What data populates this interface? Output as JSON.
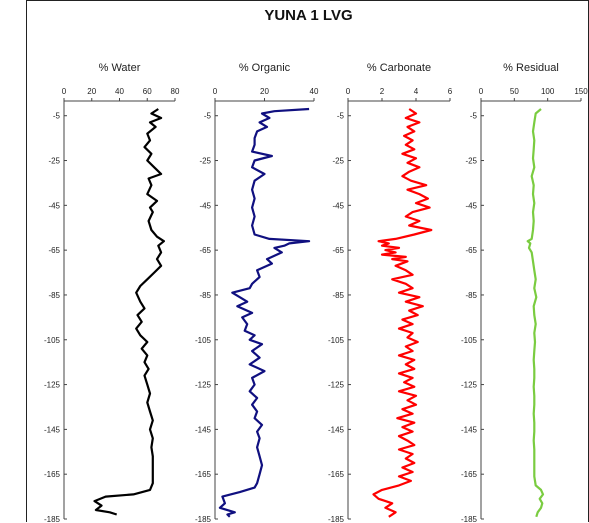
{
  "chart_data": {
    "type": "line",
    "title": "YUNA 1 LVG",
    "y_ticks": [
      "-5",
      "-25",
      "-45",
      "-65",
      "-85",
      "-105",
      "-125",
      "-145",
      "-165",
      "-185"
    ],
    "y_values": [
      -5,
      -25,
      -45,
      -65,
      -85,
      -105,
      -125,
      -145,
      -165,
      -185
    ],
    "ylim": [
      -185,
      -2
    ],
    "panels": [
      {
        "title": "% Water",
        "xlim": [
          0,
          80
        ],
        "x_ticks": [
          "0",
          "20",
          "40",
          "60",
          "80"
        ],
        "x_tick_values": [
          0,
          20,
          40,
          60,
          80
        ],
        "color": "#000000",
        "points": [
          [
            68,
            -2
          ],
          [
            63,
            -4
          ],
          [
            70,
            -6
          ],
          [
            62,
            -8
          ],
          [
            66,
            -10
          ],
          [
            60,
            -13
          ],
          [
            62,
            -16
          ],
          [
            58,
            -19
          ],
          [
            63,
            -22
          ],
          [
            60,
            -25
          ],
          [
            65,
            -28
          ],
          [
            70,
            -31
          ],
          [
            61,
            -33
          ],
          [
            63,
            -36
          ],
          [
            60,
            -40
          ],
          [
            67,
            -43
          ],
          [
            62,
            -46
          ],
          [
            64,
            -48
          ],
          [
            61,
            -52
          ],
          [
            63,
            -56
          ],
          [
            67,
            -59
          ],
          [
            72,
            -61
          ],
          [
            68,
            -63
          ],
          [
            70,
            -66
          ],
          [
            67,
            -69
          ],
          [
            70,
            -72
          ],
          [
            65,
            -75
          ],
          [
            60,
            -78
          ],
          [
            55,
            -81
          ],
          [
            52,
            -84
          ],
          [
            55,
            -88
          ],
          [
            58,
            -91
          ],
          [
            53,
            -94
          ],
          [
            56,
            -97
          ],
          [
            52,
            -100
          ],
          [
            55,
            -103
          ],
          [
            60,
            -106
          ],
          [
            56,
            -109
          ],
          [
            60,
            -112
          ],
          [
            58,
            -115
          ],
          [
            61,
            -118
          ],
          [
            58,
            -121
          ],
          [
            60,
            -125
          ],
          [
            62,
            -129
          ],
          [
            60,
            -133
          ],
          [
            62,
            -137
          ],
          [
            64,
            -141
          ],
          [
            62,
            -145
          ],
          [
            64,
            -149
          ],
          [
            63,
            -153
          ],
          [
            64,
            -157
          ],
          [
            64,
            -161
          ],
          [
            64,
            -165
          ],
          [
            64,
            -169
          ],
          [
            62,
            -172
          ],
          [
            50,
            -174
          ],
          [
            30,
            -175
          ],
          [
            22,
            -177
          ],
          [
            27,
            -179
          ],
          [
            23,
            -181
          ],
          [
            33,
            -182
          ],
          [
            38,
            -183
          ]
        ]
      },
      {
        "title": "% Organic",
        "xlim": [
          0,
          40
        ],
        "x_ticks": [
          "0",
          "20",
          "40"
        ],
        "x_tick_values": [
          0,
          20,
          40
        ],
        "color": "#101080",
        "points": [
          [
            38,
            -2
          ],
          [
            24,
            -3
          ],
          [
            19,
            -4
          ],
          [
            22,
            -6
          ],
          [
            18,
            -8
          ],
          [
            21,
            -10
          ],
          [
            17,
            -12
          ],
          [
            16,
            -15
          ],
          [
            16,
            -18
          ],
          [
            15,
            -21
          ],
          [
            23,
            -23
          ],
          [
            16,
            -25
          ],
          [
            15,
            -28
          ],
          [
            20,
            -31
          ],
          [
            16,
            -34
          ],
          [
            15,
            -38
          ],
          [
            16,
            -42
          ],
          [
            15,
            -46
          ],
          [
            16,
            -50
          ],
          [
            15,
            -54
          ],
          [
            16,
            -58
          ],
          [
            22,
            -60
          ],
          [
            38,
            -61
          ],
          [
            30,
            -62
          ],
          [
            28,
            -63
          ],
          [
            24,
            -64
          ],
          [
            27,
            -66
          ],
          [
            21,
            -69
          ],
          [
            23,
            -71
          ],
          [
            17,
            -74
          ],
          [
            18,
            -77
          ],
          [
            15,
            -80
          ],
          [
            14,
            -82
          ],
          [
            7,
            -84
          ],
          [
            10,
            -86
          ],
          [
            13,
            -88
          ],
          [
            9,
            -90
          ],
          [
            15,
            -93
          ],
          [
            11,
            -95
          ],
          [
            13,
            -98
          ],
          [
            12,
            -101
          ],
          [
            16,
            -103
          ],
          [
            14,
            -105
          ],
          [
            19,
            -107
          ],
          [
            15,
            -110
          ],
          [
            18,
            -113
          ],
          [
            14,
            -116
          ],
          [
            20,
            -119
          ],
          [
            15,
            -122
          ],
          [
            16,
            -125
          ],
          [
            14,
            -128
          ],
          [
            17,
            -131
          ],
          [
            15,
            -134
          ],
          [
            17,
            -137
          ],
          [
            16,
            -140
          ],
          [
            19,
            -143
          ],
          [
            17,
            -146
          ],
          [
            18,
            -149
          ],
          [
            17,
            -153
          ],
          [
            18,
            -157
          ],
          [
            19,
            -161
          ],
          [
            18,
            -165
          ],
          [
            17,
            -169
          ],
          [
            16,
            -171
          ],
          [
            10,
            -173
          ],
          [
            3,
            -175
          ],
          [
            4,
            -178
          ],
          [
            2,
            -180
          ],
          [
            8,
            -182
          ],
          [
            5,
            -183
          ],
          [
            6,
            -184
          ]
        ]
      },
      {
        "title": "% Carbonate",
        "xlim": [
          0,
          6
        ],
        "x_ticks": [
          "0",
          "2",
          "4",
          "6"
        ],
        "x_tick_values": [
          0,
          2,
          4,
          6
        ],
        "color": "#ff0000",
        "points": [
          [
            3.6,
            -2
          ],
          [
            4.0,
            -4
          ],
          [
            3.4,
            -6
          ],
          [
            4.2,
            -8
          ],
          [
            3.5,
            -10
          ],
          [
            3.9,
            -12
          ],
          [
            3.3,
            -14
          ],
          [
            3.8,
            -16
          ],
          [
            3.4,
            -18
          ],
          [
            3.9,
            -20
          ],
          [
            3.2,
            -22
          ],
          [
            4.0,
            -24
          ],
          [
            3.5,
            -26
          ],
          [
            4.2,
            -28
          ],
          [
            3.6,
            -30
          ],
          [
            3.2,
            -32
          ],
          [
            3.7,
            -34
          ],
          [
            4.6,
            -36
          ],
          [
            3.5,
            -38
          ],
          [
            4.2,
            -40
          ],
          [
            4.7,
            -42
          ],
          [
            4.0,
            -44
          ],
          [
            4.8,
            -46
          ],
          [
            3.8,
            -48
          ],
          [
            3.4,
            -50
          ],
          [
            4.2,
            -52
          ],
          [
            3.6,
            -54
          ],
          [
            4.9,
            -56
          ],
          [
            3.9,
            -58
          ],
          [
            2.8,
            -60
          ],
          [
            1.8,
            -61
          ],
          [
            2.4,
            -62
          ],
          [
            2.0,
            -63
          ],
          [
            3.0,
            -64
          ],
          [
            2.2,
            -65
          ],
          [
            2.8,
            -66
          ],
          [
            2.0,
            -67
          ],
          [
            3.4,
            -68
          ],
          [
            2.6,
            -69
          ],
          [
            3.5,
            -70
          ],
          [
            2.8,
            -72
          ],
          [
            3.4,
            -74
          ],
          [
            3.8,
            -76
          ],
          [
            2.6,
            -78
          ],
          [
            3.4,
            -80
          ],
          [
            3.8,
            -82
          ],
          [
            3.0,
            -84
          ],
          [
            4.2,
            -86
          ],
          [
            3.4,
            -88
          ],
          [
            4.4,
            -90
          ],
          [
            3.6,
            -92
          ],
          [
            4.1,
            -94
          ],
          [
            3.2,
            -96
          ],
          [
            3.8,
            -98
          ],
          [
            3.0,
            -100
          ],
          [
            3.8,
            -102
          ],
          [
            3.5,
            -104
          ],
          [
            4.1,
            -106
          ],
          [
            3.4,
            -108
          ],
          [
            3.8,
            -110
          ],
          [
            3.0,
            -112
          ],
          [
            3.9,
            -114
          ],
          [
            3.4,
            -116
          ],
          [
            3.9,
            -118
          ],
          [
            3.0,
            -120
          ],
          [
            3.8,
            -122
          ],
          [
            3.3,
            -124
          ],
          [
            3.9,
            -126
          ],
          [
            3.0,
            -128
          ],
          [
            4.0,
            -130
          ],
          [
            3.5,
            -132
          ],
          [
            4.0,
            -134
          ],
          [
            3.2,
            -136
          ],
          [
            3.8,
            -138
          ],
          [
            2.9,
            -140
          ],
          [
            3.9,
            -142
          ],
          [
            3.2,
            -144
          ],
          [
            3.8,
            -146
          ],
          [
            3.0,
            -148
          ],
          [
            3.5,
            -150
          ],
          [
            3.9,
            -152
          ],
          [
            3.0,
            -154
          ],
          [
            3.8,
            -156
          ],
          [
            3.4,
            -158
          ],
          [
            3.9,
            -160
          ],
          [
            3.2,
            -162
          ],
          [
            3.8,
            -164
          ],
          [
            3.0,
            -166
          ],
          [
            3.7,
            -168
          ],
          [
            3.0,
            -170
          ],
          [
            2.0,
            -172
          ],
          [
            1.5,
            -174
          ],
          [
            1.8,
            -176
          ],
          [
            2.6,
            -178
          ],
          [
            2.2,
            -180
          ],
          [
            2.8,
            -182
          ],
          [
            2.4,
            -184
          ]
        ]
      },
      {
        "title": "% Residual",
        "xlim": [
          0,
          150
        ],
        "x_ticks": [
          "0",
          "50",
          "100",
          "150"
        ],
        "x_tick_values": [
          0,
          50,
          100,
          150
        ],
        "color": "#7acc40",
        "points": [
          [
            90,
            -2
          ],
          [
            82,
            -4
          ],
          [
            80,
            -8
          ],
          [
            78,
            -12
          ],
          [
            80,
            -16
          ],
          [
            79,
            -20
          ],
          [
            78,
            -24
          ],
          [
            80,
            -28
          ],
          [
            76,
            -32
          ],
          [
            79,
            -36
          ],
          [
            78,
            -40
          ],
          [
            80,
            -44
          ],
          [
            78,
            -48
          ],
          [
            79,
            -52
          ],
          [
            78,
            -56
          ],
          [
            76,
            -60
          ],
          [
            70,
            -61
          ],
          [
            74,
            -62
          ],
          [
            72,
            -64
          ],
          [
            76,
            -66
          ],
          [
            78,
            -70
          ],
          [
            80,
            -74
          ],
          [
            82,
            -78
          ],
          [
            80,
            -82
          ],
          [
            83,
            -86
          ],
          [
            79,
            -90
          ],
          [
            80,
            -94
          ],
          [
            82,
            -98
          ],
          [
            80,
            -102
          ],
          [
            81,
            -106
          ],
          [
            80,
            -110
          ],
          [
            79,
            -114
          ],
          [
            80,
            -118
          ],
          [
            80,
            -122
          ],
          [
            79,
            -126
          ],
          [
            80,
            -130
          ],
          [
            80,
            -134
          ],
          [
            79,
            -138
          ],
          [
            80,
            -142
          ],
          [
            80,
            -146
          ],
          [
            79,
            -150
          ],
          [
            80,
            -154
          ],
          [
            80,
            -158
          ],
          [
            80,
            -162
          ],
          [
            80,
            -166
          ],
          [
            82,
            -170
          ],
          [
            90,
            -172
          ],
          [
            93,
            -174
          ],
          [
            88,
            -176
          ],
          [
            92,
            -178
          ],
          [
            90,
            -180
          ],
          [
            85,
            -182
          ],
          [
            83,
            -184
          ]
        ]
      }
    ]
  }
}
